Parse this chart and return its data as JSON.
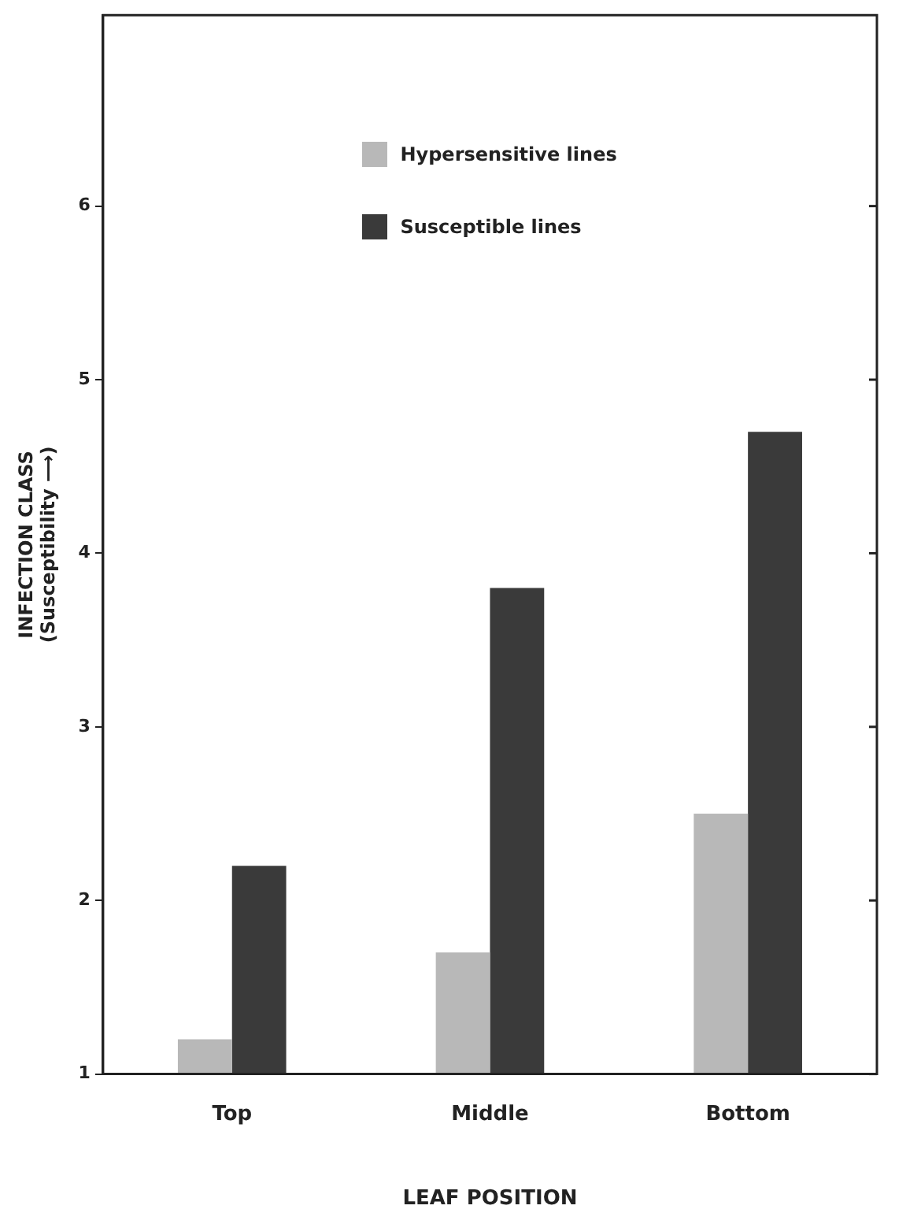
{
  "chart_data": {
    "type": "bar",
    "xlabel": "LEAF POSITION",
    "ylabel": "INFECTION CLASS\n(Susceptibility ⟶)",
    "categories": [
      "Top",
      "Middle",
      "Bottom"
    ],
    "series": [
      {
        "name": "Hypersensitive lines",
        "color": "#b8b8b8",
        "values": [
          1.2,
          1.7,
          2.5
        ]
      },
      {
        "name": "Susceptible lines",
        "color": "#3a3a3a",
        "values": [
          2.2,
          3.8,
          4.7
        ]
      }
    ],
    "ylim": [
      1,
      7.1
    ],
    "yticks": [
      1,
      2,
      3,
      4,
      5,
      6
    ],
    "grid": false,
    "legend": "top"
  }
}
